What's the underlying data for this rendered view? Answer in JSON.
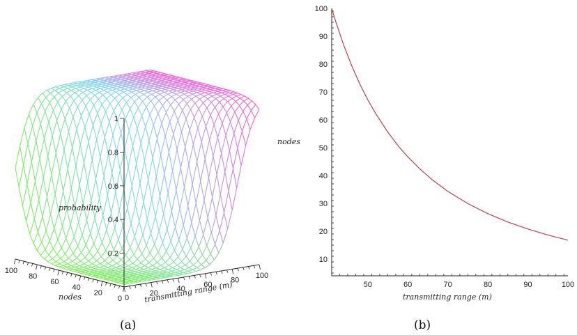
{
  "chart_data": [
    {
      "type": "surface3d",
      "caption": "(a)",
      "xlabel": "transmitting range (m)",
      "ylabel": "nodes",
      "zlabel": "probability",
      "x_ticks": [
        "0",
        "20",
        "40",
        "60",
        "80",
        "100"
      ],
      "y_ticks": [
        "100",
        "80",
        "60",
        "40",
        "20",
        "0"
      ],
      "z_ticks": [
        "0.2",
        "0.4",
        "0.6",
        "0.8",
        "1"
      ],
      "xlim": [
        0,
        100
      ],
      "ylim": [
        0,
        100
      ],
      "zlim": [
        0,
        1
      ],
      "grid": "wireframe mesh",
      "colors": {
        "low": "#7cf25a",
        "mid": "#7fd6ff",
        "high": "#ff5ad8"
      }
    },
    {
      "type": "line",
      "caption": "(b)",
      "xlabel": "transmitting range (m)",
      "ylabel": "nodes",
      "xlim": [
        41,
        100
      ],
      "ylim": [
        4,
        100
      ],
      "x_ticks": [
        "50",
        "60",
        "70",
        "80",
        "90",
        "100"
      ],
      "y_ticks": [
        "10",
        "20",
        "30",
        "40",
        "50",
        "60",
        "70",
        "80",
        "90",
        "100"
      ],
      "series": [
        {
          "color": "#c0404a",
          "x": [
            41,
            42,
            44,
            46,
            48,
            50,
            52,
            55,
            58,
            60,
            63,
            66,
            70,
            75,
            80,
            85,
            90,
            95,
            100
          ],
          "y": [
            100,
            95.3,
            86.8,
            79.4,
            72.9,
            67.2,
            62.2,
            55.6,
            49.9,
            46.7,
            42.4,
            38.6,
            34.3,
            29.9,
            26.3,
            23.3,
            20.8,
            18.6,
            16.8
          ]
        }
      ]
    }
  ]
}
